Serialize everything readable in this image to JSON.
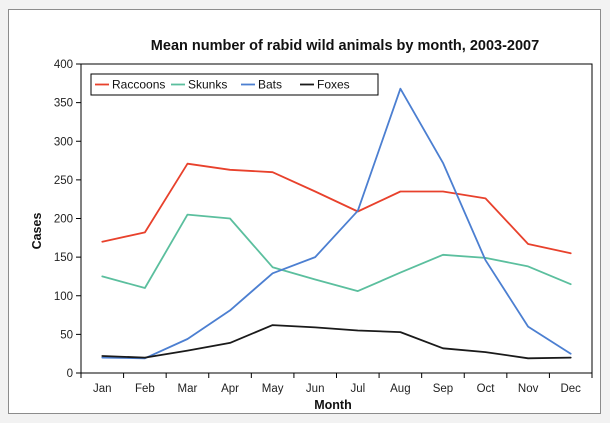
{
  "chart_data": {
    "type": "line",
    "title": "Mean number of rabid wild animals by month, 2003-2007",
    "xlabel": "Month",
    "ylabel": "Cases",
    "categories": [
      "Jan",
      "Feb",
      "Mar",
      "Apr",
      "May",
      "Jun",
      "Jul",
      "Aug",
      "Sep",
      "Oct",
      "Nov",
      "Dec"
    ],
    "ylim": [
      0,
      400
    ],
    "yticks": [
      0,
      50,
      100,
      150,
      200,
      250,
      300,
      350,
      400
    ],
    "grid": false,
    "legend_position": "top-left",
    "series": [
      {
        "name": "Raccoons",
        "color": "#e8412c",
        "values": [
          170,
          182,
          271,
          263,
          260,
          235,
          209,
          235,
          235,
          226,
          167,
          155
        ]
      },
      {
        "name": "Skunks",
        "color": "#5bbf9e",
        "values": [
          125,
          110,
          205,
          200,
          137,
          121,
          106,
          130,
          153,
          149,
          138,
          115
        ]
      },
      {
        "name": "Bats",
        "color": "#4c7fd1",
        "values": [
          20,
          19,
          44,
          81,
          129,
          150,
          210,
          368,
          272,
          146,
          60,
          25
        ]
      },
      {
        "name": "Foxes",
        "color": "#1a1a1a",
        "values": [
          22,
          20,
          29,
          39,
          62,
          59,
          55,
          53,
          32,
          27,
          19,
          20
        ]
      }
    ]
  }
}
